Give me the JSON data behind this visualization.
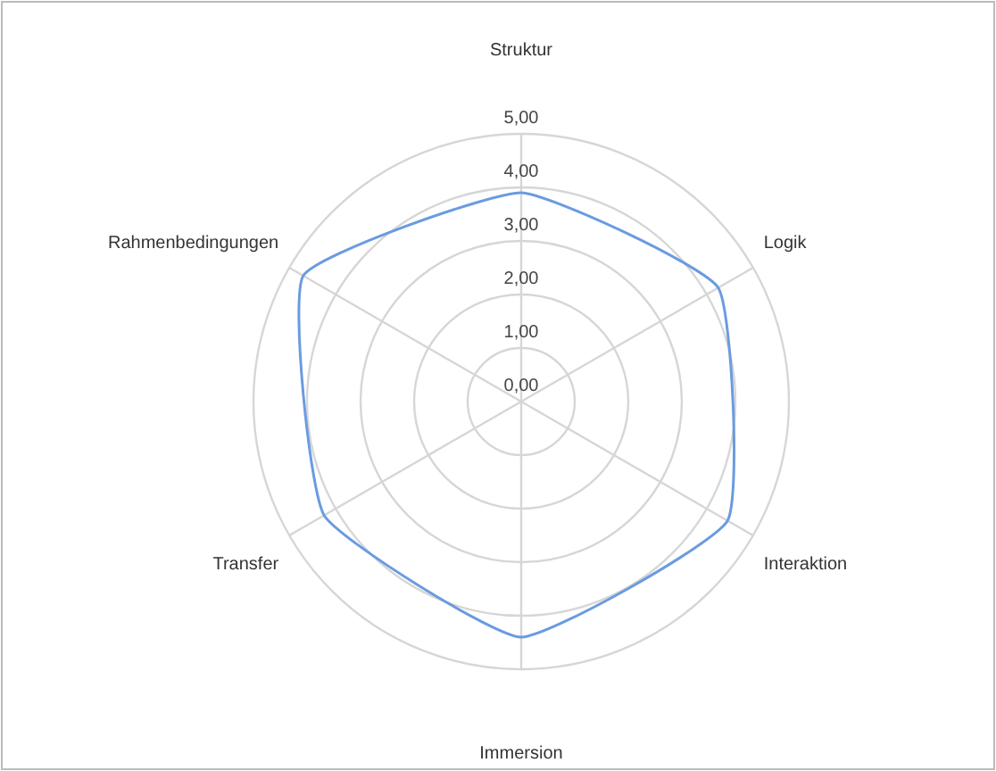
{
  "chart_data": {
    "type": "radar",
    "categories": [
      "Struktur",
      "Logik",
      "Interaktion",
      "Immersion",
      "Transfer",
      "Rahmenbedingungen"
    ],
    "series": [
      {
        "color": "#6a9be0",
        "values": [
          3.9,
          4.25,
          4.45,
          4.4,
          4.25,
          4.7
        ]
      }
    ],
    "ylim": [
      0,
      5
    ],
    "yticks": [
      {
        "value": 0,
        "label": "0,00"
      },
      {
        "value": 1,
        "label": "1,00"
      },
      {
        "value": 2,
        "label": "2,00"
      },
      {
        "value": 3,
        "label": "3,00"
      },
      {
        "value": 4,
        "label": "4,00"
      },
      {
        "value": 5,
        "label": "5,00"
      }
    ],
    "grid": true
  }
}
